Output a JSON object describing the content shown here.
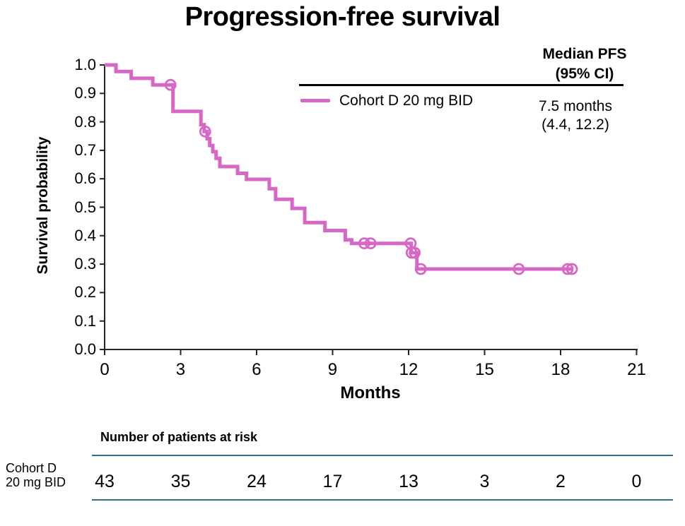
{
  "title": "Progression-free survival",
  "colors": {
    "curve": "#d667c4",
    "table_rule": "#2e6e90",
    "axis": "#262626",
    "text": "#000000"
  },
  "y_axis": {
    "label": "Survival probability",
    "tick_labels": [
      "1.0",
      "0.9",
      "0.8",
      "0.7",
      "0.6",
      "0.5",
      "0.4",
      "0.3",
      "0.2",
      "0.1",
      "0.0"
    ]
  },
  "x_axis": {
    "label": "Months",
    "tick_labels": [
      "0",
      "3",
      "6",
      "9",
      "12",
      "15",
      "18",
      "21"
    ]
  },
  "legend": {
    "header_line1": "Median PFS",
    "header_line2": "(95% CI)",
    "series_label": "Cohort D 20 mg BID",
    "median_line1": "7.5 months",
    "median_line2": "(4.4, 12.2)"
  },
  "risk_table": {
    "header": "Number of patients at risk",
    "row_label_line1": "Cohort D",
    "row_label_line2": "20 mg BID",
    "counts": [
      "43",
      "35",
      "24",
      "17",
      "13",
      "3",
      "2",
      "0"
    ]
  },
  "chart_data": {
    "type": "line",
    "subtype": "kaplan-meier-step",
    "title": "Progression-free survival",
    "xlabel": "Months",
    "ylabel": "Survival probability",
    "xlim": [
      0,
      21
    ],
    "ylim": [
      0.0,
      1.0
    ],
    "x_ticks": [
      0,
      3,
      6,
      9,
      12,
      15,
      18,
      21
    ],
    "y_ticks": [
      1.0,
      0.9,
      0.8,
      0.7,
      0.6,
      0.5,
      0.4,
      0.3,
      0.2,
      0.1,
      0.0
    ],
    "grid": false,
    "legend_position": "top-right",
    "series": [
      {
        "name": "Cohort D 20 mg BID",
        "color": "#d667c4",
        "median_pfs": "7.5 months",
        "ci_95": "(4.4, 12.2)",
        "step_points": [
          [
            0,
            1.0
          ],
          [
            0.45,
            1.0
          ],
          [
            0.45,
            0.977
          ],
          [
            1.05,
            0.977
          ],
          [
            1.05,
            0.953
          ],
          [
            1.9,
            0.953
          ],
          [
            1.9,
            0.93
          ],
          [
            2.7,
            0.93
          ],
          [
            2.7,
            0.837
          ],
          [
            3.8,
            0.837
          ],
          [
            3.8,
            0.79
          ],
          [
            3.93,
            0.79
          ],
          [
            3.93,
            0.766
          ],
          [
            4.05,
            0.766
          ],
          [
            4.05,
            0.741
          ],
          [
            4.15,
            0.741
          ],
          [
            4.15,
            0.717
          ],
          [
            4.27,
            0.717
          ],
          [
            4.27,
            0.695
          ],
          [
            4.4,
            0.695
          ],
          [
            4.4,
            0.672
          ],
          [
            4.55,
            0.672
          ],
          [
            4.55,
            0.643
          ],
          [
            5.25,
            0.643
          ],
          [
            5.25,
            0.619
          ],
          [
            5.6,
            0.619
          ],
          [
            5.6,
            0.598
          ],
          [
            6.5,
            0.598
          ],
          [
            6.5,
            0.565
          ],
          [
            6.75,
            0.565
          ],
          [
            6.75,
            0.528
          ],
          [
            7.4,
            0.528
          ],
          [
            7.4,
            0.496
          ],
          [
            7.9,
            0.496
          ],
          [
            7.9,
            0.446
          ],
          [
            8.7,
            0.446
          ],
          [
            8.7,
            0.418
          ],
          [
            9.5,
            0.418
          ],
          [
            9.5,
            0.385
          ],
          [
            9.75,
            0.385
          ],
          [
            9.75,
            0.373
          ],
          [
            12.1,
            0.373
          ],
          [
            12.1,
            0.34
          ],
          [
            12.33,
            0.34
          ],
          [
            12.33,
            0.283
          ],
          [
            18.5,
            0.283
          ]
        ],
        "censor_marks": [
          [
            2.6,
            0.93
          ],
          [
            3.97,
            0.766
          ],
          [
            10.25,
            0.373
          ],
          [
            10.5,
            0.373
          ],
          [
            12.08,
            0.373
          ],
          [
            12.12,
            0.34
          ],
          [
            12.24,
            0.34
          ],
          [
            12.48,
            0.283
          ],
          [
            16.35,
            0.283
          ],
          [
            18.28,
            0.283
          ],
          [
            18.45,
            0.283
          ]
        ]
      }
    ],
    "at_risk": {
      "times": [
        0,
        3,
        6,
        9,
        12,
        15,
        18,
        21
      ],
      "counts": [
        43,
        35,
        24,
        17,
        13,
        3,
        2,
        0
      ],
      "row_label": "Cohort D 20 mg BID"
    }
  }
}
